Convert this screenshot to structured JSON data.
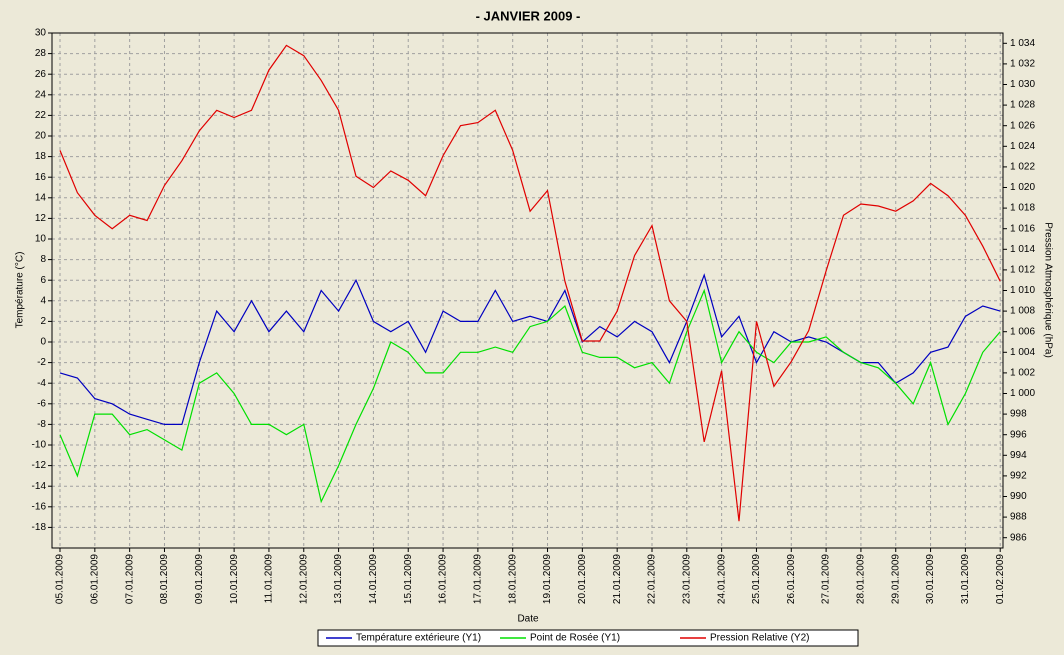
{
  "chart_data": {
    "type": "line",
    "title": "-  JANVIER  2009  -",
    "x_label": "Date",
    "y_label": "Température (°C)",
    "y2_label": "Pression Atmosphérique (hPa)",
    "x": [
      5.0,
      5.5,
      6.0,
      6.5,
      7.0,
      7.5,
      8.0,
      8.5,
      9.0,
      9.5,
      10.0,
      10.5,
      11.0,
      11.5,
      12.0,
      12.5,
      13.0,
      13.5,
      14.0,
      14.5,
      15.0,
      15.5,
      16.0,
      16.5,
      17.0,
      17.5,
      18.0,
      18.5,
      19.0,
      19.5,
      20.0,
      20.5,
      21.0,
      21.5,
      22.0,
      22.5,
      23.0,
      23.5,
      24.0,
      24.5,
      25.0,
      25.5,
      26.0,
      26.5,
      27.0,
      27.5,
      28.0,
      28.5,
      29.0,
      29.5,
      30.0,
      30.5,
      31.0,
      31.5,
      32.0
    ],
    "xlim": [
      4.77,
      32.08
    ],
    "xticks": [
      {
        "value": 5,
        "label": "05.01.2009"
      },
      {
        "value": 6,
        "label": "06.01.2009"
      },
      {
        "value": 7,
        "label": "07.01.2009"
      },
      {
        "value": 8,
        "label": "08.01.2009"
      },
      {
        "value": 9,
        "label": "09.01.2009"
      },
      {
        "value": 10,
        "label": "10.01.2009"
      },
      {
        "value": 11,
        "label": "11.01.2009"
      },
      {
        "value": 12,
        "label": "12.01.2009"
      },
      {
        "value": 13,
        "label": "13.01.2009"
      },
      {
        "value": 14,
        "label": "14.01.2009"
      },
      {
        "value": 15,
        "label": "15.01.2009"
      },
      {
        "value": 16,
        "label": "16.01.2009"
      },
      {
        "value": 17,
        "label": "17.01.2009"
      },
      {
        "value": 18,
        "label": "18.01.2009"
      },
      {
        "value": 19,
        "label": "19.01.2009"
      },
      {
        "value": 20,
        "label": "20.01.2009"
      },
      {
        "value": 21,
        "label": "21.01.2009"
      },
      {
        "value": 22,
        "label": "22.01.2009"
      },
      {
        "value": 23,
        "label": "23.01.2009"
      },
      {
        "value": 24,
        "label": "24.01.2009"
      },
      {
        "value": 25,
        "label": "25.01.2009"
      },
      {
        "value": 26,
        "label": "26.01.2009"
      },
      {
        "value": 27,
        "label": "27.01.2009"
      },
      {
        "value": 28,
        "label": "28.01.2009"
      },
      {
        "value": 29,
        "label": "29.01.2009"
      },
      {
        "value": 30,
        "label": "30.01.2009"
      },
      {
        "value": 31,
        "label": "31.01.2009"
      },
      {
        "value": 32,
        "label": "01.02.2009"
      }
    ],
    "ylim": [
      -20,
      30
    ],
    "yticks": [
      30,
      28,
      26,
      24,
      22,
      20,
      18,
      16,
      14,
      12,
      10,
      8,
      6,
      4,
      2,
      0,
      -2,
      -4,
      -6,
      -8,
      -10,
      -12,
      -14,
      -16,
      -18
    ],
    "y2lim": [
      985,
      1035
    ],
    "y2ticks": [
      {
        "value": 1034,
        "label": "1 034"
      },
      {
        "value": 1032,
        "label": "1 032"
      },
      {
        "value": 1030,
        "label": "1 030"
      },
      {
        "value": 1028,
        "label": "1 028"
      },
      {
        "value": 1026,
        "label": "1 026"
      },
      {
        "value": 1024,
        "label": "1 024"
      },
      {
        "value": 1022,
        "label": "1 022"
      },
      {
        "value": 1020,
        "label": "1 020"
      },
      {
        "value": 1018,
        "label": "1 018"
      },
      {
        "value": 1016,
        "label": "1 016"
      },
      {
        "value": 1014,
        "label": "1 014"
      },
      {
        "value": 1012,
        "label": "1 012"
      },
      {
        "value": 1010,
        "label": "1 010"
      },
      {
        "value": 1008,
        "label": "1 008"
      },
      {
        "value": 1006,
        "label": "1 006"
      },
      {
        "value": 1004,
        "label": "1 004"
      },
      {
        "value": 1002,
        "label": "1 002"
      },
      {
        "value": 1000,
        "label": "1 000"
      },
      998,
      996,
      994,
      992,
      990,
      988,
      986
    ],
    "grid": true,
    "series": [
      {
        "name": "Température extérieure (Y1)",
        "color": "#0000c0",
        "axis": "y",
        "values": [
          -3,
          -3.5,
          -5.5,
          -6,
          -7,
          -7.5,
          -8,
          -8,
          -2,
          3,
          1,
          4,
          1,
          3,
          1,
          5,
          3,
          6,
          2,
          1,
          2,
          -1,
          3,
          2,
          2,
          5,
          2,
          2.5,
          2,
          5,
          0,
          1.5,
          0.5,
          2,
          1,
          -2,
          2,
          6.5,
          0.5,
          2.5,
          -2,
          1,
          0,
          0.5,
          0,
          -1,
          -2,
          -2,
          -4,
          -3,
          -1,
          -0.5,
          2.5,
          3.5,
          3
        ]
      },
      {
        "name": "Point de Rosée (Y1)",
        "color": "#00e000",
        "axis": "y",
        "values": [
          -9,
          -13,
          -7,
          -7,
          -9,
          -8.5,
          -9.5,
          -10.5,
          -4,
          -3,
          -5,
          -8,
          -8,
          -9,
          -8,
          -15.5,
          -12,
          -8,
          -4.5,
          0,
          -1,
          -3,
          -3,
          -1,
          -1,
          -0.5,
          -1,
          1.5,
          2,
          3.5,
          -1,
          -1.5,
          -1.5,
          -2.5,
          -2,
          -4,
          1,
          5,
          -2,
          1,
          -1,
          -2,
          0,
          0,
          0.5,
          -1,
          -2,
          -2.5,
          -4,
          -6,
          -2,
          -8,
          -5,
          -1,
          1
        ]
      },
      {
        "name": "Pression Relative (Y2)",
        "color": "#e00000",
        "axis": "y2",
        "values": [
          1023.6,
          1019.5,
          1017.3,
          1016,
          1017.3,
          1016.8,
          1020.2,
          1022.6,
          1025.5,
          1027.5,
          1026.8,
          1027.5,
          1031.4,
          1033.8,
          1032.8,
          1030.4,
          1027.5,
          1021.1,
          1020,
          1021.6,
          1020.7,
          1019.2,
          1023.1,
          1026,
          1026.3,
          1027.5,
          1023.6,
          1017.7,
          1019.7,
          1010.9,
          1005.1,
          1005.1,
          1008,
          1013.4,
          1016.3,
          1009,
          1007,
          995.3,
          1002.2,
          987.6,
          1007,
          1000.7,
          1003.1,
          1006.1,
          1011.9,
          1017.3,
          1018.4,
          1018.2,
          1017.7,
          1018.7,
          1020.4,
          1019.2,
          1017.3,
          1014.3,
          1010.9
        ]
      }
    ]
  }
}
